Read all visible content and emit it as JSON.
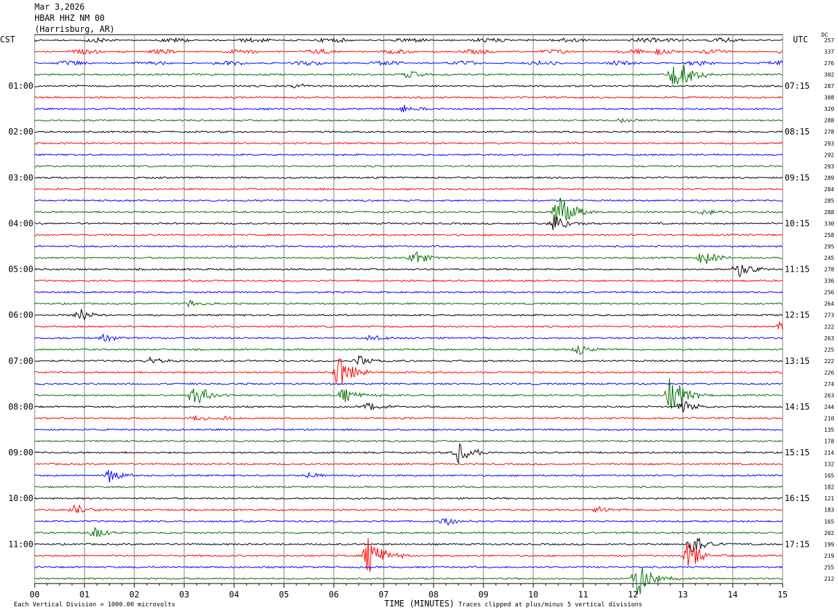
{
  "header": {
    "date": "Mar 3,2026",
    "station": "HBAR HHZ NM 00",
    "location": "(Harrisburg, AR)"
  },
  "left_tz": "CST",
  "right_tz": "UTC",
  "dc_label": "DC",
  "footer": {
    "scale_note": "Each Vertical Division = 1000.00 microvolts",
    "xlabel": "TIME (MINUTES)",
    "clip_note": "Traces clipped at plus/minus 5 vertical divisions"
  },
  "colors": {
    "trace_cycle": [
      "#000000",
      "#ff0000",
      "#0000ff",
      "#007000"
    ],
    "grid": "#808080"
  },
  "chart_data": {
    "type": "line",
    "title": "HBAR HHZ NM 00",
    "xlabel": "TIME (MINUTES)",
    "ylabel": "",
    "xlim": [
      0,
      15
    ],
    "x_ticks": [
      "00",
      "01",
      "02",
      "03",
      "04",
      "05",
      "06",
      "07",
      "08",
      "09",
      "10",
      "11",
      "12",
      "13",
      "14",
      "15"
    ],
    "left_time_labels": [
      "01:00",
      "02:00",
      "03:00",
      "04:00",
      "05:00",
      "06:00",
      "07:00",
      "08:00",
      "09:00",
      "10:00",
      "11:00"
    ],
    "right_time_labels": [
      "07:15",
      "08:15",
      "09:15",
      "10:15",
      "11:15",
      "12:15",
      "13:15",
      "14:15",
      "15:15",
      "16:15",
      "17:15"
    ],
    "dc_offsets": [
      257,
      337,
      276,
      302,
      287,
      308,
      320,
      288,
      278,
      293,
      292,
      293,
      289,
      284,
      285,
      288,
      330,
      258,
      295,
      245,
      278,
      336,
      256,
      264,
      273,
      222,
      263,
      225,
      222,
      226,
      274,
      263,
      244,
      210,
      135,
      178,
      214,
      132,
      165,
      182,
      121,
      183,
      165,
      202,
      199,
      219,
      255,
      212
    ],
    "events": [
      {
        "trace": 0,
        "minute": 12.7,
        "amp": 0.2
      },
      {
        "trace": 1,
        "minute": 12.5,
        "amp": 0.4
      },
      {
        "trace": 3,
        "minute": 7.5,
        "amp": 0.5
      },
      {
        "trace": 3,
        "minute": 12.8,
        "amp": 1.2
      },
      {
        "trace": 3,
        "minute": 13.0,
        "amp": 1.0
      },
      {
        "trace": 4,
        "minute": 5.2,
        "amp": 0.3
      },
      {
        "trace": 6,
        "minute": 7.4,
        "amp": 0.4
      },
      {
        "trace": 7,
        "minute": 11.8,
        "amp": 0.3
      },
      {
        "trace": 15,
        "minute": 10.5,
        "amp": 2.0
      },
      {
        "trace": 15,
        "minute": 13.4,
        "amp": 0.4
      },
      {
        "trace": 16,
        "minute": 10.4,
        "amp": 1.0
      },
      {
        "trace": 19,
        "minute": 7.6,
        "amp": 0.9
      },
      {
        "trace": 19,
        "minute": 13.4,
        "amp": 0.8
      },
      {
        "trace": 20,
        "minute": 14.1,
        "amp": 1.0
      },
      {
        "trace": 23,
        "minute": 3.1,
        "amp": 0.4
      },
      {
        "trace": 24,
        "minute": 0.9,
        "amp": 0.8
      },
      {
        "trace": 25,
        "minute": 15.0,
        "amp": 0.9
      },
      {
        "trace": 26,
        "minute": 1.4,
        "amp": 0.4
      },
      {
        "trace": 26,
        "minute": 6.7,
        "amp": 0.4
      },
      {
        "trace": 27,
        "minute": 10.9,
        "amp": 0.6
      },
      {
        "trace": 28,
        "minute": 2.3,
        "amp": 0.4
      },
      {
        "trace": 28,
        "minute": 6.5,
        "amp": 0.6
      },
      {
        "trace": 29,
        "minute": 6.1,
        "amp": 1.8
      },
      {
        "trace": 31,
        "minute": 3.2,
        "amp": 1.3
      },
      {
        "trace": 31,
        "minute": 6.2,
        "amp": 0.8
      },
      {
        "trace": 31,
        "minute": 12.75,
        "amp": 2.5
      },
      {
        "trace": 32,
        "minute": 6.7,
        "amp": 0.6
      },
      {
        "trace": 32,
        "minute": 13.0,
        "amp": 0.7
      },
      {
        "trace": 33,
        "minute": 3.2,
        "amp": 0.4
      },
      {
        "trace": 33,
        "minute": 3.8,
        "amp": 0.3
      },
      {
        "trace": 36,
        "minute": 8.5,
        "amp": 1.1
      },
      {
        "trace": 38,
        "minute": 1.5,
        "amp": 0.8
      },
      {
        "trace": 38,
        "minute": 5.5,
        "amp": 0.3
      },
      {
        "trace": 41,
        "minute": 0.8,
        "amp": 0.6
      },
      {
        "trace": 41,
        "minute": 11.3,
        "amp": 0.4
      },
      {
        "trace": 42,
        "minute": 8.2,
        "amp": 0.5
      },
      {
        "trace": 43,
        "minute": 1.2,
        "amp": 0.6
      },
      {
        "trace": 44,
        "minute": 13.2,
        "amp": 1.0
      },
      {
        "trace": 45,
        "minute": 6.7,
        "amp": 2.0
      },
      {
        "trace": 45,
        "minute": 13.1,
        "amp": 1.6
      },
      {
        "trace": 47,
        "minute": 12.1,
        "amp": 2.0
      }
    ]
  }
}
